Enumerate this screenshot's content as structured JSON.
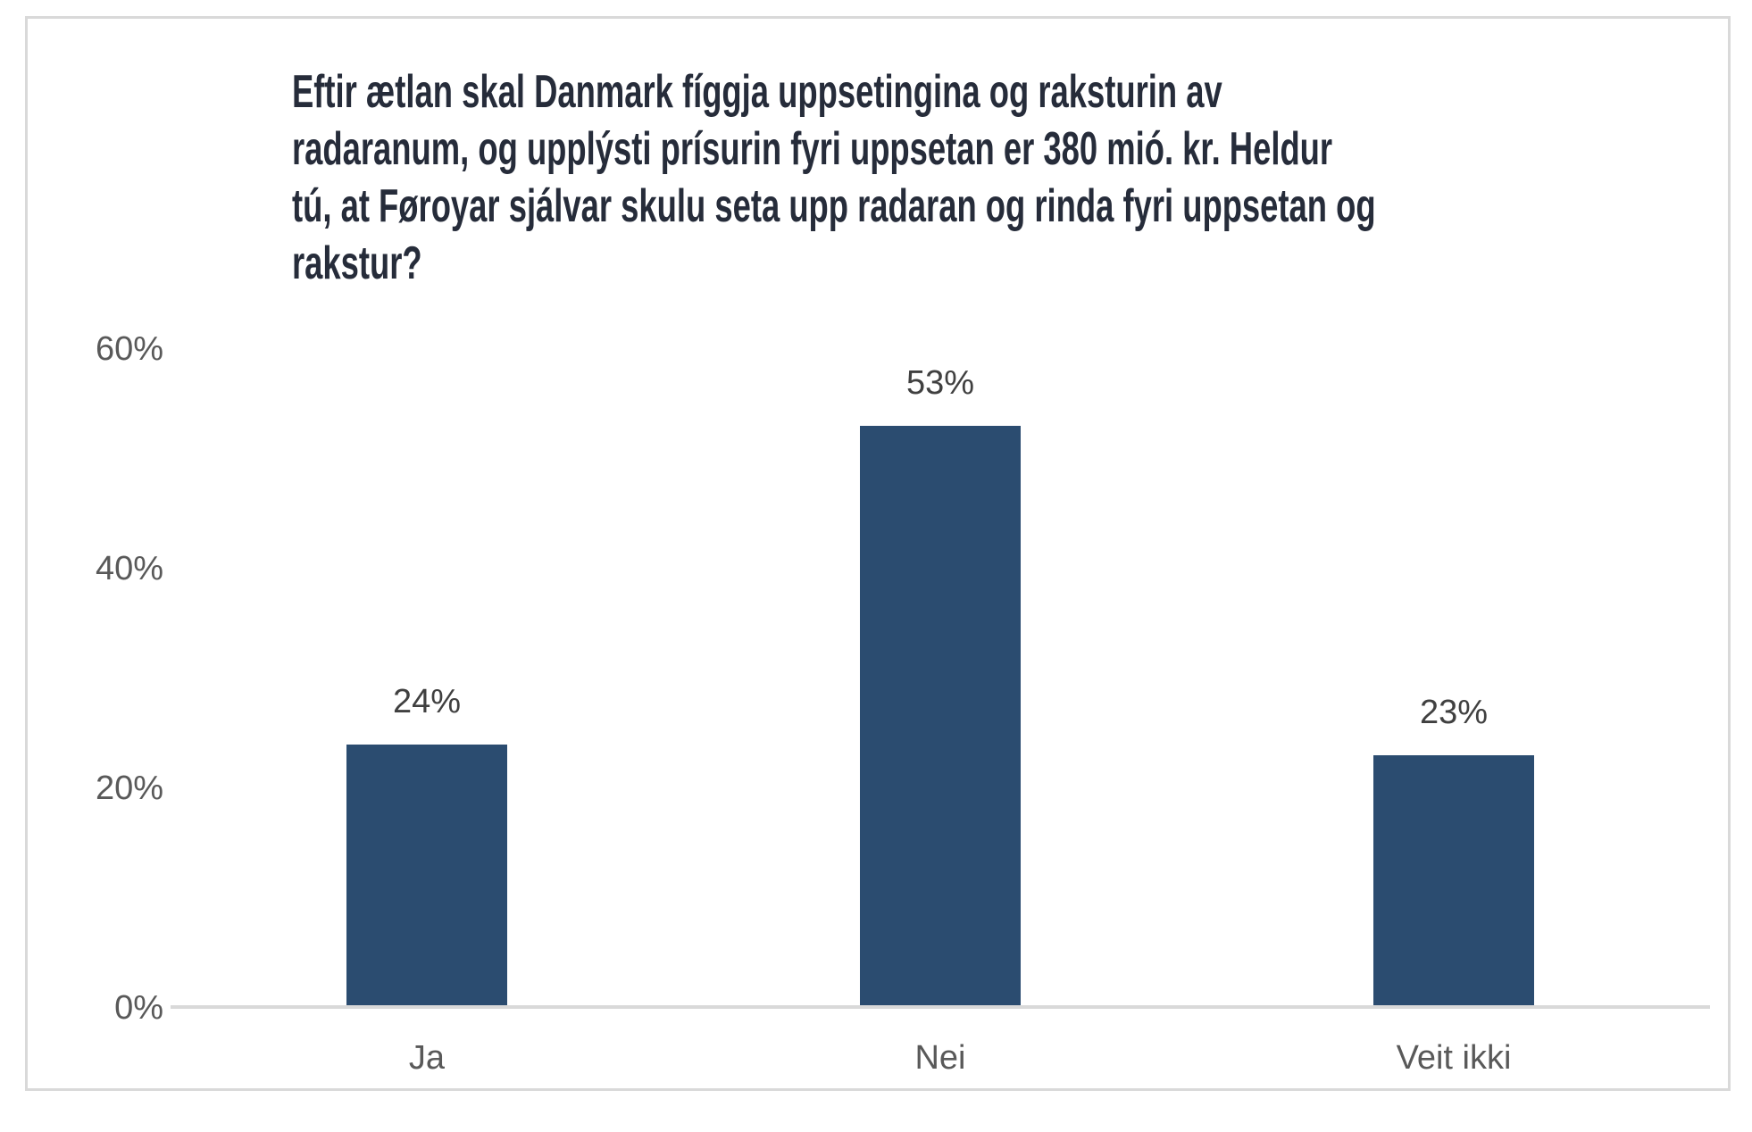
{
  "title": {
    "lines": [
      "Eftir ætlan skal Danmark fíggja uppsetingina og raksturin av",
      "radaranum, og upplýsti prísurin fyri uppsetan er 380 mió. kr. Heldur",
      "tú, at Føroyar sjálvar skulu seta upp radaran og rinda fyri uppsetan og",
      "rakstur?"
    ]
  },
  "chart_data": {
    "type": "bar",
    "title": "Eftir ætlan skal Danmark fíggja uppsetingina og raksturin av radaranum, og upplýsti prísurin fyri uppsetan er 380 mió. kr. Heldur tú, at Føroyar sjálvar skulu seta upp radaran og rinda fyri uppsetan og rakstur?",
    "categories": [
      "Ja",
      "Nei",
      "Veit ikki"
    ],
    "values": [
      24,
      53,
      23
    ],
    "data_labels": [
      "24%",
      "53%",
      "23%"
    ],
    "y_ticks": [
      "0%",
      "20%",
      "40%",
      "60%"
    ],
    "y_tick_values": [
      0,
      20,
      40,
      60
    ],
    "ylim": [
      0,
      60
    ],
    "xlabel": "",
    "ylabel": "",
    "grid": false,
    "legend": "none"
  },
  "colors": {
    "bar": "#2b4c70",
    "title_text": "#262c3a",
    "axis_text": "#595959",
    "data_label_text": "#404040",
    "axis_line": "#d9d9d9",
    "frame_border": "#d9d9d9",
    "background": "#ffffff"
  }
}
